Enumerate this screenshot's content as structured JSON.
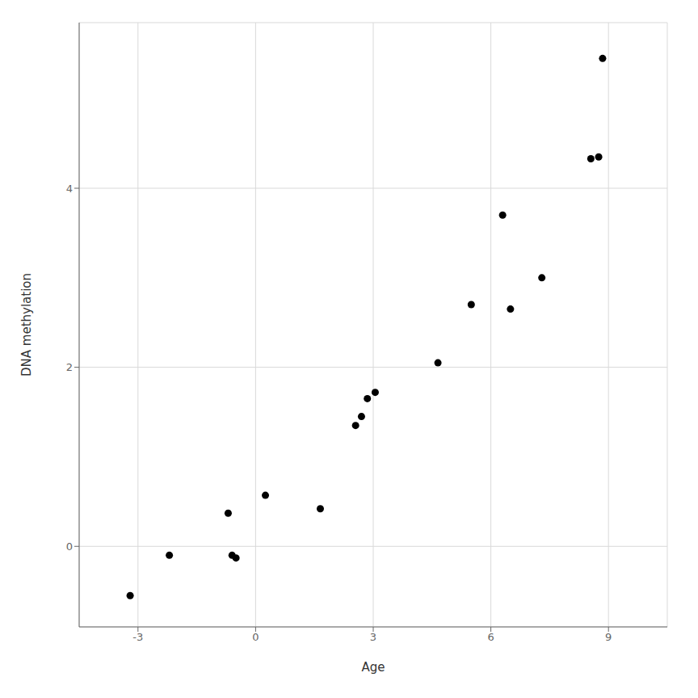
{
  "chart_data": {
    "type": "scatter",
    "x": [
      -3.2,
      -2.2,
      -0.7,
      -0.6,
      -0.5,
      0.25,
      1.65,
      2.55,
      2.7,
      2.85,
      3.05,
      4.65,
      5.5,
      6.3,
      6.5,
      7.3,
      8.55,
      8.75,
      8.85
    ],
    "y": [
      -0.55,
      -0.1,
      0.37,
      -0.1,
      -0.13,
      0.57,
      0.42,
      1.35,
      1.45,
      1.65,
      1.72,
      2.05,
      2.7,
      3.7,
      2.65,
      3.0,
      4.33,
      4.35,
      5.45
    ],
    "xlabel": "Age",
    "ylabel": "DNA methylation",
    "xlim": [
      -4.5,
      10.5
    ],
    "ylim": [
      -0.9,
      5.85
    ],
    "xticks": [
      -3,
      0,
      3,
      6,
      9
    ],
    "yticks": [
      0,
      2,
      4
    ],
    "color": "#000000",
    "grid": true
  }
}
